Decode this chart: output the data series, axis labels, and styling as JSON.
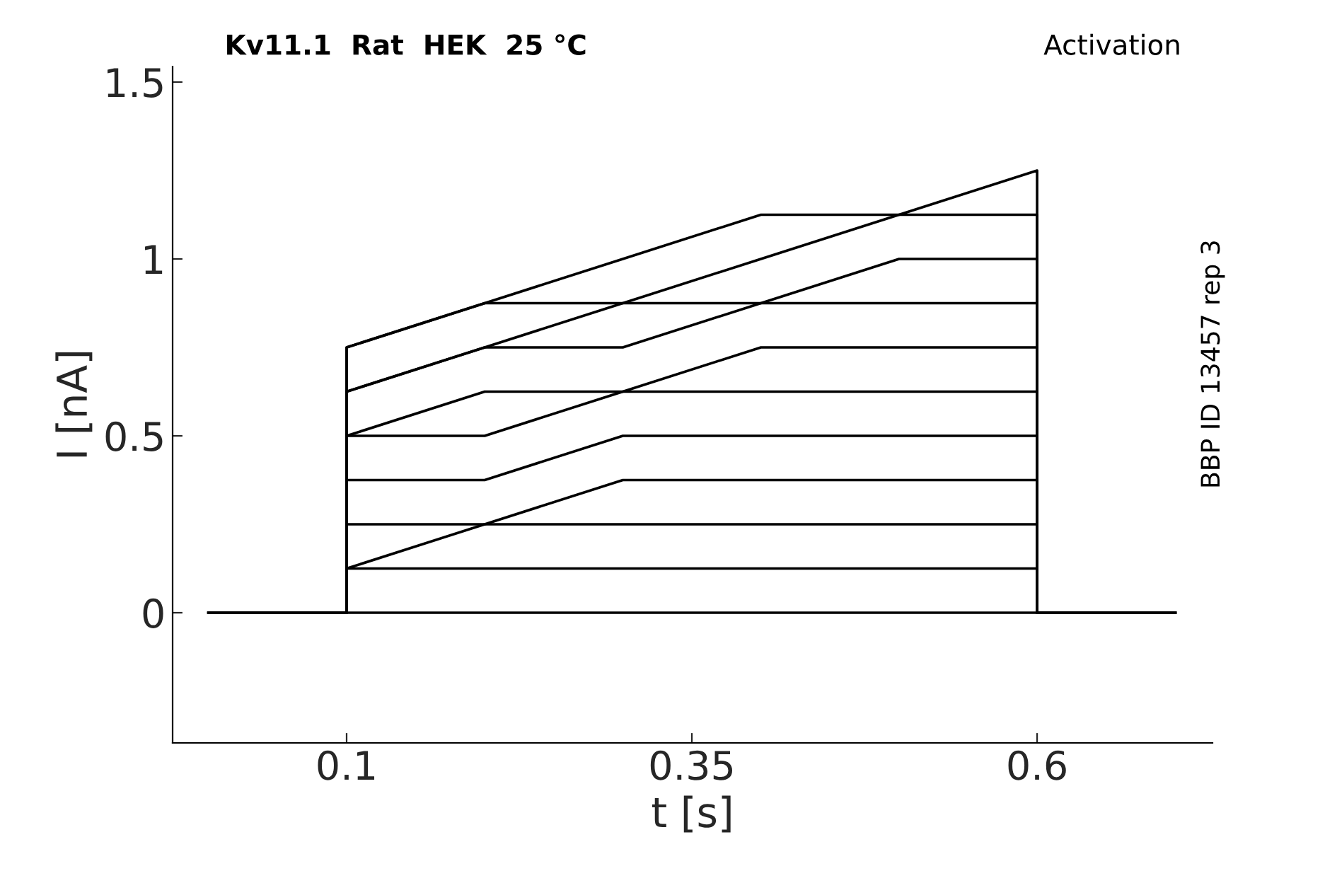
{
  "chart_data": {
    "type": "line",
    "title": "Kv11.1  Rat  HEK  25 °C",
    "subtitle": "Activation",
    "xlabel": "t [s]",
    "ylabel": "I [nA]",
    "annotations": [
      "BBP ID 13457 rep 3"
    ],
    "x": [
      0,
      0.1,
      0.1,
      0.2,
      0.3,
      0.4,
      0.5,
      0.6,
      0.6,
      0.7
    ],
    "series": [
      {
        "color": "#000000",
        "values": [
          0,
          0,
          0.75,
          0.875,
          1.0,
          1.125,
          1.125,
          1.25,
          0,
          0
        ]
      },
      {
        "color": "#000000",
        "values": [
          0,
          0,
          0.75,
          0.875,
          0.875,
          1.0,
          1.125,
          1.125,
          0,
          0
        ]
      },
      {
        "color": "#000000",
        "values": [
          0,
          0,
          0.625,
          0.75,
          0.875,
          0.875,
          1.0,
          1.0,
          0,
          0
        ]
      },
      {
        "color": "#000000",
        "values": [
          0,
          0,
          0.625,
          0.75,
          0.75,
          0.875,
          0.875,
          0.875,
          0,
          0
        ]
      },
      {
        "color": "#000000",
        "values": [
          0,
          0,
          0.5,
          0.625,
          0.625,
          0.75,
          0.75,
          0.75,
          0,
          0
        ]
      },
      {
        "color": "#000000",
        "values": [
          0,
          0,
          0.5,
          0.5,
          0.625,
          0.625,
          0.625,
          0.625,
          0,
          0
        ]
      },
      {
        "color": "#000000",
        "values": [
          0,
          0,
          0.375,
          0.375,
          0.5,
          0.5,
          0.5,
          0.5,
          0,
          0
        ]
      },
      {
        "color": "#000000",
        "values": [
          0,
          0,
          0.25,
          0.25,
          0.375,
          0.375,
          0.375,
          0.375,
          0,
          0
        ]
      },
      {
        "color": "#000000",
        "values": [
          0,
          0,
          0.125,
          0.25,
          0.25,
          0.25,
          0.25,
          0.25,
          0,
          0
        ]
      },
      {
        "color": "#000000",
        "values": [
          0,
          0,
          0.125,
          0.125,
          0.125,
          0.125,
          0.125,
          0.125,
          0,
          0
        ]
      },
      {
        "color": "#000000",
        "values": [
          0,
          0,
          0,
          0,
          0,
          0,
          0,
          0,
          0,
          0
        ]
      }
    ],
    "xlim": [
      -0.026,
      0.727
    ],
    "xticks": [
      0.1,
      0.35,
      0.6
    ],
    "ylim": [
      -0.368,
      1.544
    ],
    "yticks": [
      0,
      0.5,
      1,
      1.5
    ],
    "grid": false,
    "legend": false,
    "marker": "none",
    "line_style": "solid"
  }
}
